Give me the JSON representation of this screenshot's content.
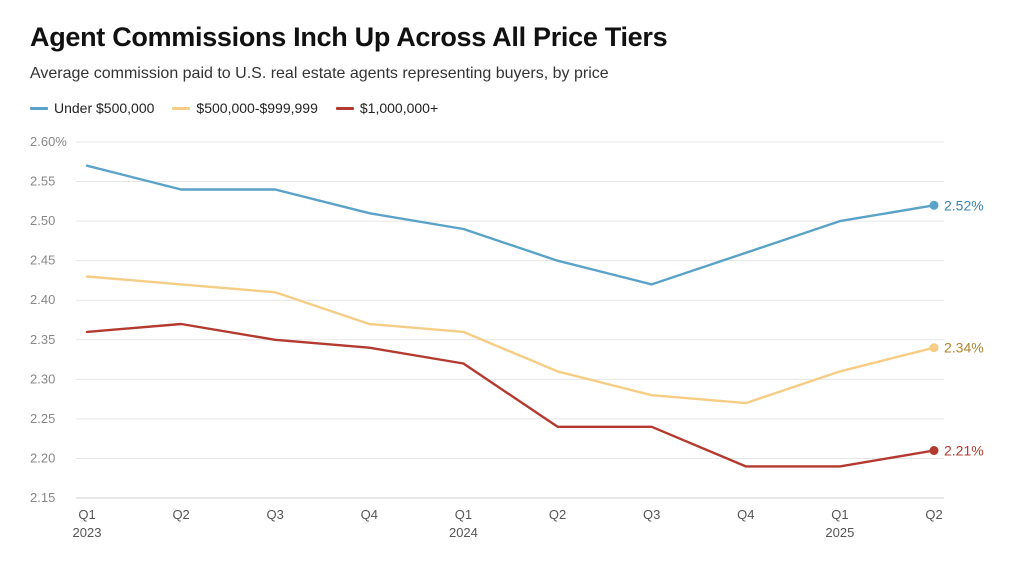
{
  "chart_data": {
    "type": "line",
    "title": "Agent Commissions Inch Up Across All Price Tiers",
    "subtitle": "Average commission paid to U.S. real estate agents representing buyers, by price",
    "xlabel": "",
    "ylabel": "",
    "categories": [
      "Q1",
      "Q2",
      "Q3",
      "Q4",
      "Q1",
      "Q2",
      "Q3",
      "Q4",
      "Q1",
      "Q2"
    ],
    "year_labels": [
      {
        "index": 0,
        "label": "2023"
      },
      {
        "index": 4,
        "label": "2024"
      },
      {
        "index": 8,
        "label": "2025"
      }
    ],
    "ylim": [
      2.15,
      2.6
    ],
    "yticks": [
      2.15,
      2.2,
      2.25,
      2.3,
      2.35,
      2.4,
      2.45,
      2.5,
      2.55,
      2.6
    ],
    "ytick_labels": [
      "2.15",
      "2.20",
      "2.25",
      "2.30",
      "2.35",
      "2.40",
      "2.45",
      "2.50",
      "2.55",
      "2.60%"
    ],
    "grid": true,
    "legend_position": "top-left",
    "series": [
      {
        "name": "Under $500,000",
        "color": "#5aa2c8",
        "label_color": "#3b86b0",
        "end_label": "2.52%",
        "values": [
          2.57,
          2.54,
          2.54,
          2.51,
          2.49,
          2.45,
          2.42,
          2.46,
          2.5,
          2.52
        ]
      },
      {
        "name": "$500,000-$999,999",
        "color": "#f6cd85",
        "label_color": "#b08530",
        "end_label": "2.34%",
        "values": [
          2.43,
          2.42,
          2.41,
          2.37,
          2.36,
          2.31,
          2.28,
          2.27,
          2.31,
          2.34
        ]
      },
      {
        "name": "$1,000,000+",
        "color": "#b43a2f",
        "label_color": "#b43a2f",
        "end_label": "2.21%",
        "values": [
          2.36,
          2.37,
          2.35,
          2.34,
          2.32,
          2.24,
          2.24,
          2.19,
          2.19,
          2.21
        ]
      }
    ]
  }
}
